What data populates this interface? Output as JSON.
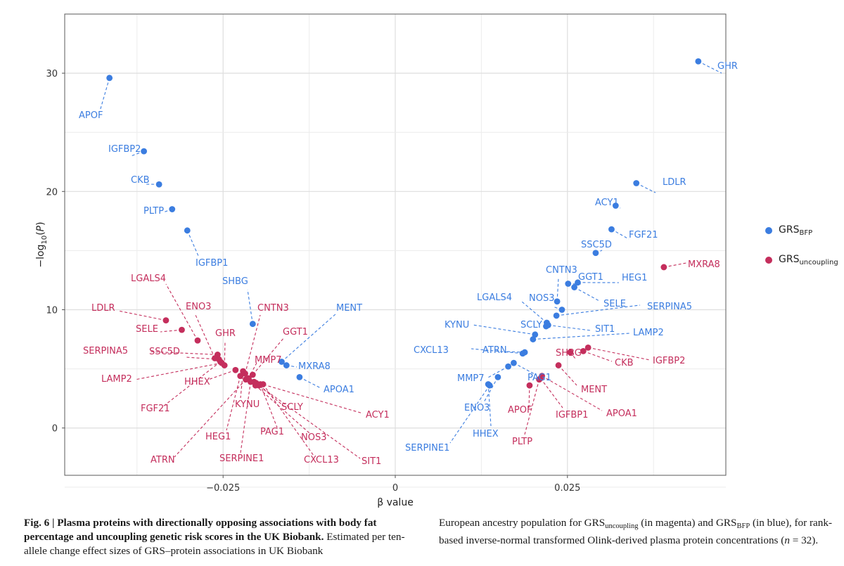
{
  "chart_data": {
    "type": "scatter",
    "xlabel": "β value",
    "ylabel_parts": [
      "−log",
      "10",
      "(",
      "P",
      ")"
    ],
    "xlim": [
      -0.048,
      0.048
    ],
    "ylim": [
      -4,
      35
    ],
    "x_ticks": [
      -0.025,
      0,
      0.025
    ],
    "x_tick_labels": [
      "−0.025",
      "0",
      "0.025"
    ],
    "y_ticks": [
      0,
      10,
      20,
      30
    ],
    "y_tick_labels": [
      "0",
      "10",
      "20",
      "30"
    ],
    "grid": true,
    "legend_position": "right",
    "series": [
      {
        "name": "GRS_BFP",
        "legend_main": "GRS",
        "legend_sub": "BFP",
        "color": "#3b7de0",
        "points": [
          {
            "label": "GHR",
            "x": 0.044,
            "y": 31.0
          },
          {
            "label": "APOF",
            "x": -0.0415,
            "y": 29.6
          },
          {
            "label": "IGFBP2",
            "x": -0.0365,
            "y": 23.4
          },
          {
            "label": "CKB",
            "x": -0.0343,
            "y": 20.6
          },
          {
            "label": "PLTP",
            "x": -0.0324,
            "y": 18.5
          },
          {
            "label": "IGFBP1",
            "x": -0.0302,
            "y": 16.7
          },
          {
            "label": "LDLR",
            "x": 0.035,
            "y": 20.7
          },
          {
            "label": "ACY1",
            "x": 0.032,
            "y": 18.8
          },
          {
            "label": "FGF21",
            "x": 0.0314,
            "y": 16.8
          },
          {
            "label": "SSC5D",
            "x": 0.0291,
            "y": 14.8
          },
          {
            "label": "GGT1",
            "x": 0.0251,
            "y": 12.2
          },
          {
            "label": "HEG1",
            "x": 0.0265,
            "y": 12.3
          },
          {
            "label": "SELE",
            "x": 0.026,
            "y": 11.9
          },
          {
            "label": "CNTN3",
            "x": 0.0235,
            "y": 10.7
          },
          {
            "label": "NOS3",
            "x": 0.0242,
            "y": 10.0
          },
          {
            "label": "SERPINA5",
            "x": 0.0234,
            "y": 9.5
          },
          {
            "label": "LGALS4",
            "x": 0.022,
            "y": 8.9
          },
          {
            "label": "SIT1",
            "x": 0.0222,
            "y": 8.7
          },
          {
            "label": "SCLY",
            "x": 0.0219,
            "y": 8.6
          },
          {
            "label": "KYNU",
            "x": 0.0203,
            "y": 7.9
          },
          {
            "label": "LAMP2",
            "x": 0.02,
            "y": 7.5
          },
          {
            "label": "ATRN",
            "x": 0.0188,
            "y": 6.4
          },
          {
            "label": "CXCL13",
            "x": 0.0185,
            "y": 6.3
          },
          {
            "label": "PAG1",
            "x": 0.0172,
            "y": 5.5
          },
          {
            "label": "MMP7",
            "x": 0.0164,
            "y": 5.2
          },
          {
            "label": "ENO3",
            "x": 0.0149,
            "y": 4.3
          },
          {
            "label": "HHEX",
            "x": 0.0135,
            "y": 3.7
          },
          {
            "label": "SERPINE1",
            "x": 0.0137,
            "y": 3.6
          },
          {
            "label": "SHBG",
            "x": -0.0207,
            "y": 8.8
          },
          {
            "label": "MENT",
            "x": -0.0165,
            "y": 5.6
          },
          {
            "label": "MXRA8",
            "x": -0.0158,
            "y": 5.3
          },
          {
            "label": "APOA1",
            "x": -0.0139,
            "y": 4.3
          }
        ]
      },
      {
        "name": "GRS_uncoupling",
        "legend_main": "GRS",
        "legend_sub": "uncoupling",
        "color": "#c42e5c",
        "points": [
          {
            "label": "MXRA8",
            "x": 0.039,
            "y": 13.6
          },
          {
            "label": "IGFBP2",
            "x": 0.028,
            "y": 6.8
          },
          {
            "label": "CKB",
            "x": 0.0273,
            "y": 6.5
          },
          {
            "label": "SHBG",
            "x": 0.0254,
            "y": 6.4
          },
          {
            "label": "MENT",
            "x": 0.0237,
            "y": 5.3
          },
          {
            "label": "APOA1",
            "x": 0.0213,
            "y": 4.4
          },
          {
            "label": "IGFBP1",
            "x": 0.0211,
            "y": 4.2
          },
          {
            "label": "PLTP",
            "x": 0.0209,
            "y": 4.1
          },
          {
            "label": "APOF",
            "x": 0.0195,
            "y": 3.6
          },
          {
            "label": "LDLR",
            "x": -0.0333,
            "y": 9.1
          },
          {
            "label": "SELE",
            "x": -0.031,
            "y": 8.3
          },
          {
            "label": "LGALS4",
            "x": -0.0287,
            "y": 7.4
          },
          {
            "label": "SERPINA5",
            "x": -0.0258,
            "y": 6.2
          },
          {
            "label": "ENO3",
            "x": -0.0262,
            "y": 5.9
          },
          {
            "label": "SSC5D",
            "x": -0.0256,
            "y": 5.8
          },
          {
            "label": "LAMP2",
            "x": -0.0252,
            "y": 5.5
          },
          {
            "label": "GHR",
            "x": -0.0248,
            "y": 5.3
          },
          {
            "label": "HHEX",
            "x": -0.0232,
            "y": 4.9
          },
          {
            "label": "FGF21",
            "x": -0.0254,
            "y": 5.6
          },
          {
            "label": "CNTN3",
            "x": -0.0218,
            "y": 4.6
          },
          {
            "label": "MMP7",
            "x": -0.0213,
            "y": 4.2
          },
          {
            "label": "GGT1",
            "x": -0.0207,
            "y": 4.5
          },
          {
            "label": "KYNU",
            "x": -0.0221,
            "y": 4.8
          },
          {
            "label": "HEG1",
            "x": -0.0225,
            "y": 4.4
          },
          {
            "label": "ATRN",
            "x": -0.0217,
            "y": 4.1
          },
          {
            "label": "SERPINE1",
            "x": -0.021,
            "y": 3.9
          },
          {
            "label": "SCLY",
            "x": -0.0202,
            "y": 3.8
          },
          {
            "label": "PAG1",
            "x": -0.0196,
            "y": 3.7
          },
          {
            "label": "NOS3",
            "x": -0.0203,
            "y": 3.6
          },
          {
            "label": "CXCL13",
            "x": -0.0192,
            "y": 3.7
          },
          {
            "label": "ACY1",
            "x": -0.0205,
            "y": 3.9
          },
          {
            "label": "SIT1",
            "x": -0.0198,
            "y": 3.6
          }
        ]
      }
    ]
  },
  "caption": {
    "fig_label": "Fig. 6 | Plasma proteins with directionally opposing associations with body fat percentage and uncoupling genetic risk scores in the UK Biobank.",
    "left_rest": " Estimated per ten-allele change effect sizes of GRS–protein associations in UK Biobank",
    "right_1": "European ancestry population for GRS",
    "right_sub1": "uncoupling",
    "right_2": " (in magenta) and GRS",
    "right_sub2": "BFP",
    "right_3": " (in blue), for rank-based inverse-normal transformed Olink-derived plasma protein concentrations (",
    "right_n": "n",
    "right_4": " = 32)."
  }
}
